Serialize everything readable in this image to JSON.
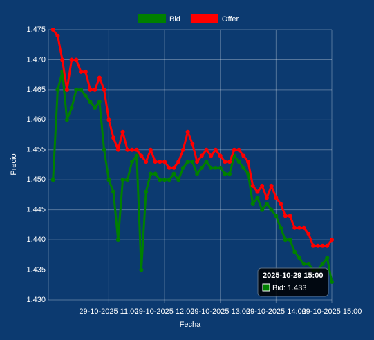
{
  "chart_data": {
    "type": "line",
    "x_label": "Fecha",
    "y_label": "Precio",
    "x": [
      "2025-10-29 10:00",
      "2025-10-29 10:05",
      "2025-10-29 10:10",
      "2025-10-29 10:15",
      "2025-10-29 10:20",
      "2025-10-29 10:25",
      "2025-10-29 10:30",
      "2025-10-29 10:35",
      "2025-10-29 10:40",
      "2025-10-29 10:45",
      "2025-10-29 10:50",
      "2025-10-29 10:55",
      "2025-10-29 11:00",
      "2025-10-29 11:05",
      "2025-10-29 11:10",
      "2025-10-29 11:15",
      "2025-10-29 11:20",
      "2025-10-29 11:25",
      "2025-10-29 11:30",
      "2025-10-29 11:35",
      "2025-10-29 11:40",
      "2025-10-29 11:45",
      "2025-10-29 11:50",
      "2025-10-29 11:55",
      "2025-10-29 12:00",
      "2025-10-29 12:05",
      "2025-10-29 12:10",
      "2025-10-29 12:15",
      "2025-10-29 12:20",
      "2025-10-29 12:25",
      "2025-10-29 12:30",
      "2025-10-29 12:35",
      "2025-10-29 12:40",
      "2025-10-29 12:45",
      "2025-10-29 12:50",
      "2025-10-29 12:55",
      "2025-10-29 13:00",
      "2025-10-29 13:05",
      "2025-10-29 13:10",
      "2025-10-29 13:15",
      "2025-10-29 13:20",
      "2025-10-29 13:25",
      "2025-10-29 13:30",
      "2025-10-29 13:35",
      "2025-10-29 13:40",
      "2025-10-29 13:45",
      "2025-10-29 13:50",
      "2025-10-29 13:55",
      "2025-10-29 14:00",
      "2025-10-29 14:05",
      "2025-10-29 14:10",
      "2025-10-29 14:15",
      "2025-10-29 14:20",
      "2025-10-29 14:25",
      "2025-10-29 14:30",
      "2025-10-29 14:35",
      "2025-10-29 14:40",
      "2025-10-29 14:45",
      "2025-10-29 14:50",
      "2025-10-29 14:55",
      "2025-10-29 15:00"
    ],
    "series": [
      {
        "name": "Bid",
        "color": "#008000",
        "values": [
          1.45,
          1.465,
          1.468,
          1.46,
          1.462,
          1.465,
          1.465,
          1.464,
          1.463,
          1.462,
          1.463,
          1.455,
          1.45,
          1.448,
          1.44,
          1.45,
          1.45,
          1.453,
          1.454,
          1.435,
          1.448,
          1.451,
          1.451,
          1.45,
          1.45,
          1.45,
          1.451,
          1.45,
          1.452,
          1.453,
          1.453,
          1.451,
          1.452,
          1.453,
          1.452,
          1.452,
          1.452,
          1.451,
          1.451,
          1.454,
          1.453,
          1.452,
          1.451,
          1.446,
          1.447,
          1.445,
          1.446,
          1.445,
          1.444,
          1.442,
          1.44,
          1.44,
          1.438,
          1.437,
          1.436,
          1.436,
          1.435,
          1.435,
          1.436,
          1.437,
          1.433
        ]
      },
      {
        "name": "Offer",
        "color": "#ff0000",
        "values": [
          1.475,
          1.474,
          1.47,
          1.465,
          1.47,
          1.47,
          1.468,
          1.468,
          1.465,
          1.465,
          1.467,
          1.465,
          1.46,
          1.457,
          1.455,
          1.458,
          1.455,
          1.455,
          1.455,
          1.454,
          1.453,
          1.455,
          1.453,
          1.453,
          1.453,
          1.452,
          1.452,
          1.453,
          1.455,
          1.458,
          1.456,
          1.453,
          1.454,
          1.455,
          1.454,
          1.455,
          1.454,
          1.453,
          1.453,
          1.455,
          1.455,
          1.454,
          1.453,
          1.449,
          1.448,
          1.449,
          1.447,
          1.449,
          1.447,
          1.446,
          1.444,
          1.444,
          1.442,
          1.442,
          1.442,
          1.441,
          1.439,
          1.439,
          1.439,
          1.439,
          1.44
        ]
      }
    ],
    "xlim": [
      "2025-10-29 09:55",
      "2025-10-29 15:00"
    ],
    "xticks": [
      {
        "value": "2025-10-29 11:00",
        "label": "29-10-2025 11:00"
      },
      {
        "value": "2025-10-29 12:00",
        "label": "29-10-2025 12:00"
      },
      {
        "value": "2025-10-29 13:00",
        "label": "29-10-2025 13:00"
      },
      {
        "value": "2025-10-29 14:00",
        "label": "29-10-2025 14:00"
      },
      {
        "value": "2025-10-29 15:00",
        "label": "29-10-2025 15:00"
      }
    ],
    "ylim": [
      1.43,
      1.475
    ],
    "yticks": [
      {
        "value": 1.43,
        "label": "1.430"
      },
      {
        "value": 1.435,
        "label": "1.435"
      },
      {
        "value": 1.44,
        "label": "1.440"
      },
      {
        "value": 1.445,
        "label": "1.445"
      },
      {
        "value": 1.45,
        "label": "1.450"
      },
      {
        "value": 1.455,
        "label": "1.455"
      },
      {
        "value": 1.46,
        "label": "1.460"
      },
      {
        "value": 1.465,
        "label": "1.465"
      },
      {
        "value": 1.47,
        "label": "1.470"
      },
      {
        "value": 1.475,
        "label": "1.475"
      }
    ],
    "grid": true,
    "legend": "top",
    "tooltip": {
      "title": "2025-10-29 15:00",
      "text": "Bid: 1.433",
      "color": "#008000"
    }
  }
}
